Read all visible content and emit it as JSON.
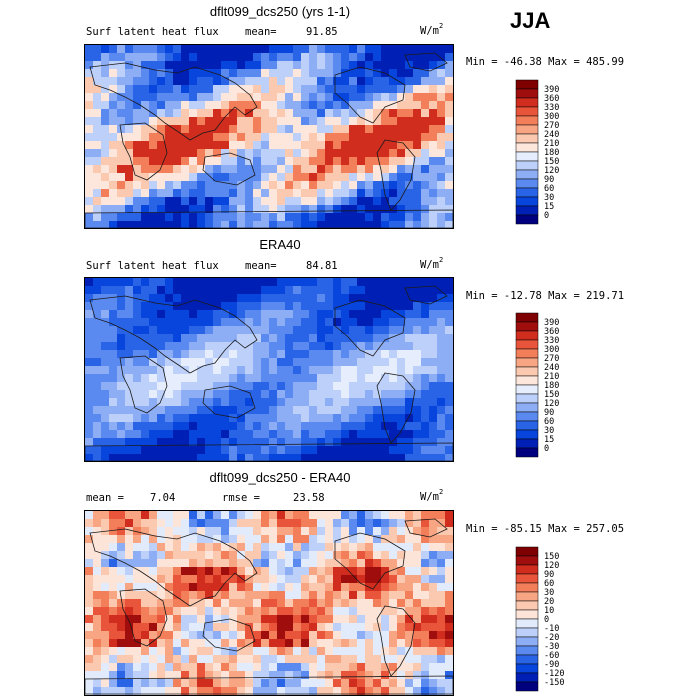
{
  "season": "JJA",
  "colors": {
    "abs_scale": [
      "#00007f",
      "#0020b5",
      "#0845dc",
      "#2a64e6",
      "#5a8af0",
      "#8daef5",
      "#bcd0fa",
      "#e6edfd",
      "#fde6dc",
      "#fbc8b0",
      "#f7a583",
      "#f37f5a",
      "#e9553a",
      "#d12d1f",
      "#a00d0d",
      "#7f0000"
    ],
    "diff_scale": [
      "#00007f",
      "#0020b5",
      "#0845dc",
      "#2a64e6",
      "#5a8af0",
      "#8daef5",
      "#bcd0fa",
      "#e1ebfc",
      "#fde4d8",
      "#fbc8b0",
      "#f7a583",
      "#f37f5a",
      "#e9553a",
      "#d12d1f",
      "#a00d0d",
      "#7f0000"
    ]
  },
  "panels": [
    {
      "id": "model",
      "title": "dflt099_dcs250 (yrs 1-1)",
      "left_label": "Surf latent heat flux",
      "mean_label": "mean=",
      "mean_value": "91.85",
      "units": "W/m",
      "units_exp": "2",
      "minmax": "Min = -46.38 Max = 485.99",
      "colorbar_labels": [
        "390",
        "360",
        "330",
        "300",
        "270",
        "240",
        "210",
        "180",
        "150",
        "120",
        "90",
        "60",
        "30",
        "15",
        "0"
      ]
    },
    {
      "id": "obs",
      "title": "ERA40",
      "left_label": "Surf latent heat flux",
      "mean_label": "mean=",
      "mean_value": "84.81",
      "units": "W/m",
      "units_exp": "2",
      "minmax": "Min = -12.78 Max = 219.71",
      "colorbar_labels": [
        "390",
        "360",
        "330",
        "300",
        "270",
        "240",
        "210",
        "180",
        "150",
        "120",
        "90",
        "60",
        "30",
        "15",
        "0"
      ]
    },
    {
      "id": "diff",
      "title": "dflt099_dcs250 - ERA40",
      "left_label": "mean =",
      "left_value": "7.04",
      "rmse_label": "rmse =",
      "rmse_value": "23.58",
      "units": "W/m",
      "units_exp": "2",
      "minmax": "Min = -85.15 Max = 257.05",
      "colorbar_labels": [
        "150",
        "120",
        "90",
        "60",
        "30",
        "20",
        "10",
        "0",
        "-10",
        "-20",
        "-30",
        "-60",
        "-90",
        "-120",
        "-150"
      ]
    }
  ]
}
